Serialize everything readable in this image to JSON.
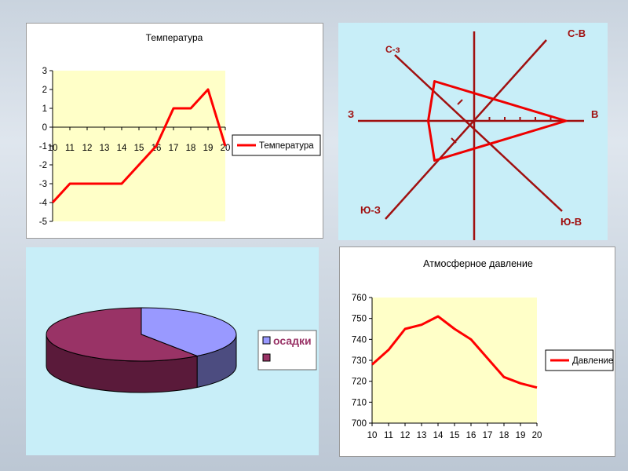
{
  "colors": {
    "line": "#ff0000",
    "plot_bg": "#ffffc8",
    "rose_axis": "#a01010",
    "rose_line": "#ee0000",
    "pie_a": "#9999ff",
    "pie_b": "#993366",
    "panel_cyan": "#c8eef8"
  },
  "chart_data": [
    {
      "type": "line",
      "title": "Температура",
      "categories": [
        "10",
        "11",
        "12",
        "13",
        "14",
        "15",
        "16",
        "17",
        "18",
        "19",
        "20"
      ],
      "series": [
        {
          "name": "Температура",
          "values": [
            -4,
            -3,
            -3,
            -3,
            -3,
            -2,
            -1,
            1,
            1,
            2,
            -1
          ]
        }
      ],
      "ylim": [
        -5,
        3
      ],
      "yticks": [
        "3",
        "2",
        "1",
        "0",
        "-1",
        "-2",
        "-3",
        "-4",
        "-5"
      ],
      "grid": false,
      "legend": "right"
    },
    {
      "type": "radar",
      "directions": [
        {
          "key": "n",
          "label": ""
        },
        {
          "key": "ne",
          "label": "С-В"
        },
        {
          "key": "e",
          "label": "В"
        },
        {
          "key": "se",
          "label": "Ю-В"
        },
        {
          "key": "s",
          "label": ""
        },
        {
          "key": "sw",
          "label": "Ю-З"
        },
        {
          "key": "w",
          "label": "З"
        },
        {
          "key": "nw",
          "label": "С-з"
        }
      ],
      "values": [
        0,
        0,
        6,
        0,
        0,
        3,
        3,
        3
      ]
    },
    {
      "type": "pie",
      "slices": [
        {
          "label": "осадки",
          "value": 40
        },
        {
          "label": "",
          "value": 60
        }
      ],
      "legend": "right"
    },
    {
      "type": "line",
      "title": "Атмосферное давление",
      "categories": [
        "10",
        "11",
        "12",
        "13",
        "14",
        "15",
        "16",
        "17",
        "18",
        "19",
        "20"
      ],
      "series": [
        {
          "name": "Давление",
          "values": [
            728,
            735,
            745,
            747,
            751,
            745,
            740,
            731,
            722,
            719,
            717
          ]
        }
      ],
      "ylim": [
        700,
        760
      ],
      "yticks": [
        "760",
        "750",
        "740",
        "730",
        "720",
        "710",
        "700"
      ],
      "grid": false,
      "legend": "right"
    }
  ]
}
